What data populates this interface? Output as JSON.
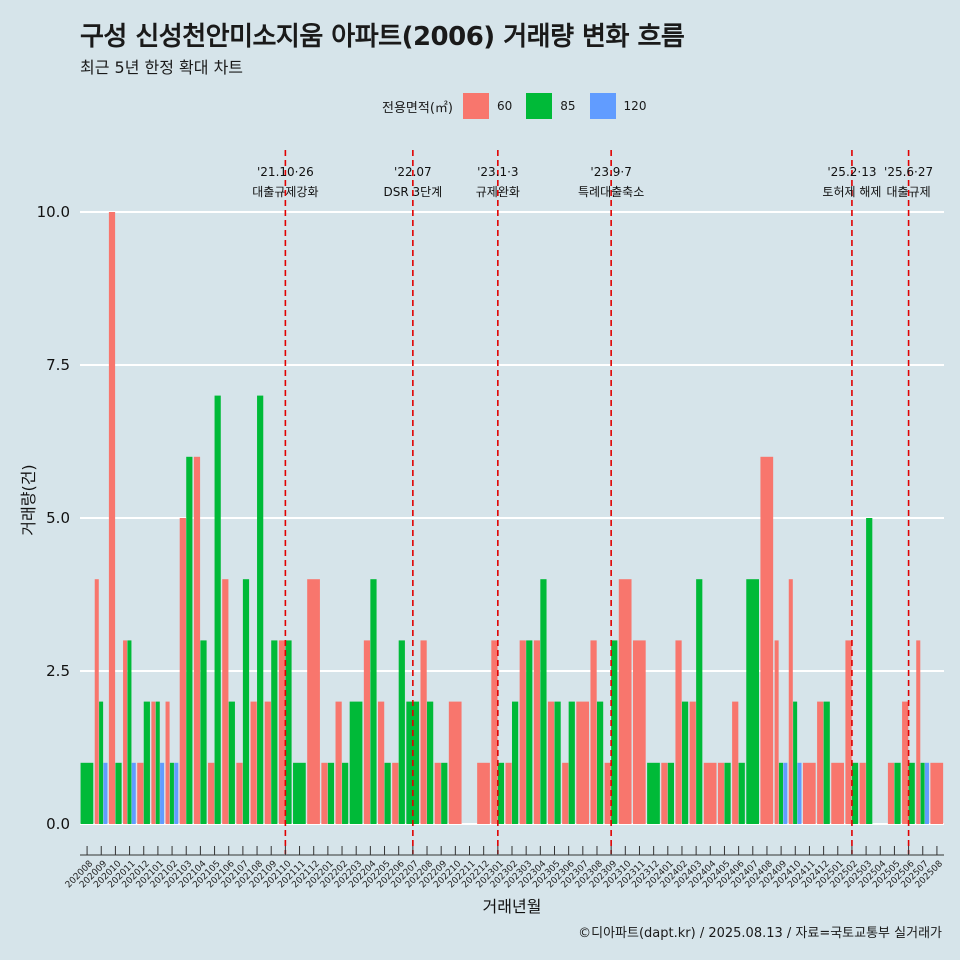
{
  "title": "구성 신성천안미소지움 아파트(2006) 거래량 변화 흐름",
  "subtitle": "최근 5년 한정 확대 차트",
  "caption": "©디아파트(dapt.kr) / 2025.08.13 / 자료=국토교통부 실거래가",
  "legend": {
    "title": "전용면적(㎡)",
    "items": [
      {
        "label": "60",
        "color": "#f8766d"
      },
      {
        "label": "85",
        "color": "#00ba38"
      },
      {
        "label": "120",
        "color": "#619cff"
      }
    ]
  },
  "chart_data": {
    "type": "bar",
    "xlabel": "거래년월",
    "ylabel": "거래량(건)",
    "ylim": [
      0,
      10
    ],
    "yticks": [
      "0.0",
      "2.5",
      "5.0",
      "7.5",
      "10.0"
    ],
    "categories": [
      "202008",
      "202009",
      "202010",
      "202011",
      "202012",
      "202101",
      "202102",
      "202103",
      "202104",
      "202105",
      "202106",
      "202107",
      "202108",
      "202109",
      "202110",
      "202111",
      "202112",
      "202201",
      "202202",
      "202203",
      "202204",
      "202205",
      "202206",
      "202207",
      "202208",
      "202209",
      "202210",
      "202211",
      "202212",
      "202301",
      "202302",
      "202303",
      "202304",
      "202305",
      "202306",
      "202307",
      "202308",
      "202309",
      "202310",
      "202311",
      "202312",
      "202401",
      "202402",
      "202403",
      "202404",
      "202405",
      "202406",
      "202407",
      "202408",
      "202409",
      "202410",
      "202411",
      "202412",
      "202501",
      "202502",
      "202503",
      "202504",
      "202505",
      "202506",
      "202507",
      "202508"
    ],
    "bars": [
      {
        "cat": "202008",
        "segments": [
          {
            "size": "85",
            "value": 1
          }
        ]
      },
      {
        "cat": "202009",
        "segments": [
          {
            "size": "60",
            "value": 4
          },
          {
            "size": "85",
            "value": 2
          },
          {
            "size": "120",
            "value": 1
          }
        ]
      },
      {
        "cat": "202010",
        "segments": [
          {
            "size": "60",
            "value": 10
          },
          {
            "size": "85",
            "value": 1
          }
        ]
      },
      {
        "cat": "202011",
        "segments": [
          {
            "size": "60",
            "value": 3
          },
          {
            "size": "85",
            "value": 3
          },
          {
            "size": "120",
            "value": 1
          }
        ]
      },
      {
        "cat": "202012",
        "segments": [
          {
            "size": "60",
            "value": 1
          },
          {
            "size": "85",
            "value": 2
          }
        ]
      },
      {
        "cat": "202101",
        "segments": [
          {
            "size": "60",
            "value": 2
          },
          {
            "size": "85",
            "value": 2
          },
          {
            "size": "120",
            "value": 1
          }
        ]
      },
      {
        "cat": "202102",
        "segments": [
          {
            "size": "60",
            "value": 2
          },
          {
            "size": "85",
            "value": 1
          },
          {
            "size": "120",
            "value": 1
          }
        ]
      },
      {
        "cat": "202103",
        "segments": [
          {
            "size": "60",
            "value": 5
          },
          {
            "size": "85",
            "value": 6
          }
        ]
      },
      {
        "cat": "202104",
        "segments": [
          {
            "size": "60",
            "value": 6
          },
          {
            "size": "85",
            "value": 3
          }
        ]
      },
      {
        "cat": "202105",
        "segments": [
          {
            "size": "60",
            "value": 1
          },
          {
            "size": "85",
            "value": 7
          }
        ]
      },
      {
        "cat": "202106",
        "segments": [
          {
            "size": "60",
            "value": 4
          },
          {
            "size": "85",
            "value": 2
          }
        ]
      },
      {
        "cat": "202107",
        "segments": [
          {
            "size": "60",
            "value": 1
          },
          {
            "size": "85",
            "value": 4
          }
        ]
      },
      {
        "cat": "202108",
        "segments": [
          {
            "size": "60",
            "value": 2
          },
          {
            "size": "85",
            "value": 7
          }
        ]
      },
      {
        "cat": "202109",
        "segments": [
          {
            "size": "60",
            "value": 2
          },
          {
            "size": "85",
            "value": 3
          }
        ]
      },
      {
        "cat": "202110",
        "segments": [
          {
            "size": "60",
            "value": 3
          },
          {
            "size": "85",
            "value": 3
          }
        ]
      },
      {
        "cat": "202111",
        "segments": [
          {
            "size": "85",
            "value": 1
          }
        ]
      },
      {
        "cat": "202112",
        "segments": [
          {
            "size": "60",
            "value": 4
          }
        ]
      },
      {
        "cat": "202201",
        "segments": [
          {
            "size": "60",
            "value": 1
          },
          {
            "size": "85",
            "value": 1
          }
        ]
      },
      {
        "cat": "202202",
        "segments": [
          {
            "size": "60",
            "value": 2
          },
          {
            "size": "85",
            "value": 1
          }
        ]
      },
      {
        "cat": "202203",
        "segments": [
          {
            "size": "85",
            "value": 2
          }
        ]
      },
      {
        "cat": "202204",
        "segments": [
          {
            "size": "60",
            "value": 3
          },
          {
            "size": "85",
            "value": 4
          }
        ]
      },
      {
        "cat": "202205",
        "segments": [
          {
            "size": "60",
            "value": 2
          },
          {
            "size": "85",
            "value": 1
          }
        ]
      },
      {
        "cat": "202206",
        "segments": [
          {
            "size": "60",
            "value": 1
          },
          {
            "size": "85",
            "value": 3
          }
        ]
      },
      {
        "cat": "202207",
        "segments": [
          {
            "size": "85",
            "value": 2
          }
        ]
      },
      {
        "cat": "202208",
        "segments": [
          {
            "size": "60",
            "value": 3
          },
          {
            "size": "85",
            "value": 2
          }
        ]
      },
      {
        "cat": "202209",
        "segments": [
          {
            "size": "60",
            "value": 1
          },
          {
            "size": "85",
            "value": 1
          }
        ]
      },
      {
        "cat": "202210",
        "segments": [
          {
            "size": "60",
            "value": 2
          }
        ]
      },
      {
        "cat": "202211",
        "segments": []
      },
      {
        "cat": "202212",
        "segments": [
          {
            "size": "60",
            "value": 1
          }
        ]
      },
      {
        "cat": "202301",
        "segments": [
          {
            "size": "60",
            "value": 3
          },
          {
            "size": "85",
            "value": 1
          }
        ]
      },
      {
        "cat": "202302",
        "segments": [
          {
            "size": "60",
            "value": 1
          },
          {
            "size": "85",
            "value": 2
          }
        ]
      },
      {
        "cat": "202303",
        "segments": [
          {
            "size": "60",
            "value": 3
          },
          {
            "size": "85",
            "value": 3
          }
        ]
      },
      {
        "cat": "202304",
        "segments": [
          {
            "size": "60",
            "value": 3
          },
          {
            "size": "85",
            "value": 4
          }
        ]
      },
      {
        "cat": "202305",
        "segments": [
          {
            "size": "60",
            "value": 2
          },
          {
            "size": "85",
            "value": 2
          }
        ]
      },
      {
        "cat": "202306",
        "segments": [
          {
            "size": "60",
            "value": 1
          },
          {
            "size": "85",
            "value": 2
          }
        ]
      },
      {
        "cat": "202307",
        "segments": [
          {
            "size": "60",
            "value": 2
          }
        ]
      },
      {
        "cat": "202308",
        "segments": [
          {
            "size": "60",
            "value": 3
          },
          {
            "size": "85",
            "value": 2
          }
        ]
      },
      {
        "cat": "202309",
        "segments": [
          {
            "size": "60",
            "value": 1
          },
          {
            "size": "85",
            "value": 3
          }
        ]
      },
      {
        "cat": "202310",
        "segments": [
          {
            "size": "60",
            "value": 4
          }
        ]
      },
      {
        "cat": "202311",
        "segments": [
          {
            "size": "60",
            "value": 3
          }
        ]
      },
      {
        "cat": "202312",
        "segments": [
          {
            "size": "85",
            "value": 1
          }
        ]
      },
      {
        "cat": "202401",
        "segments": [
          {
            "size": "60",
            "value": 1
          },
          {
            "size": "85",
            "value": 1
          }
        ]
      },
      {
        "cat": "202402",
        "segments": [
          {
            "size": "60",
            "value": 3
          },
          {
            "size": "85",
            "value": 2
          }
        ]
      },
      {
        "cat": "202403",
        "segments": [
          {
            "size": "60",
            "value": 2
          },
          {
            "size": "85",
            "value": 4
          }
        ]
      },
      {
        "cat": "202404",
        "segments": [
          {
            "size": "60",
            "value": 1
          }
        ]
      },
      {
        "cat": "202405",
        "segments": [
          {
            "size": "60",
            "value": 1
          },
          {
            "size": "85",
            "value": 1
          }
        ]
      },
      {
        "cat": "202406",
        "segments": [
          {
            "size": "60",
            "value": 2
          },
          {
            "size": "85",
            "value": 1
          }
        ]
      },
      {
        "cat": "202407",
        "segments": [
          {
            "size": "85",
            "value": 4
          }
        ]
      },
      {
        "cat": "202408",
        "segments": [
          {
            "size": "60",
            "value": 6
          }
        ]
      },
      {
        "cat": "202409",
        "segments": [
          {
            "size": "60",
            "value": 3
          },
          {
            "size": "85",
            "value": 1
          },
          {
            "size": "120",
            "value": 1
          }
        ]
      },
      {
        "cat": "202410",
        "segments": [
          {
            "size": "60",
            "value": 4
          },
          {
            "size": "85",
            "value": 2
          },
          {
            "size": "120",
            "value": 1
          }
        ]
      },
      {
        "cat": "202411",
        "segments": [
          {
            "size": "60",
            "value": 1
          }
        ]
      },
      {
        "cat": "202412",
        "segments": [
          {
            "size": "60",
            "value": 2
          },
          {
            "size": "85",
            "value": 2
          }
        ]
      },
      {
        "cat": "202501",
        "segments": [
          {
            "size": "60",
            "value": 1
          }
        ]
      },
      {
        "cat": "202502",
        "segments": [
          {
            "size": "60",
            "value": 3
          },
          {
            "size": "85",
            "value": 1
          }
        ]
      },
      {
        "cat": "202503",
        "segments": [
          {
            "size": "60",
            "value": 1
          },
          {
            "size": "85",
            "value": 5
          }
        ]
      },
      {
        "cat": "202504",
        "segments": []
      },
      {
        "cat": "202505",
        "segments": [
          {
            "size": "60",
            "value": 1
          },
          {
            "size": "85",
            "value": 1
          }
        ]
      },
      {
        "cat": "202506",
        "segments": [
          {
            "size": "60",
            "value": 2
          },
          {
            "size": "85",
            "value": 1
          }
        ]
      },
      {
        "cat": "202507",
        "segments": [
          {
            "size": "60",
            "value": 3
          },
          {
            "size": "85",
            "value": 1
          },
          {
            "size": "120",
            "value": 1
          }
        ]
      },
      {
        "cat": "202508",
        "segments": [
          {
            "size": "60",
            "value": 1
          }
        ]
      }
    ],
    "events": [
      {
        "date": "'21.10·26",
        "label": "대출규제강화",
        "at": "202110"
      },
      {
        "date": "'22.07",
        "label": "DSR 3단계",
        "at": "202207"
      },
      {
        "date": "'23.1·3",
        "label": "규제완화",
        "at": "202301"
      },
      {
        "date": "'23.9·7",
        "label": "특례대출축소",
        "at": "202309"
      },
      {
        "date": "'25.2·13",
        "label": "토허제 해제",
        "at": "202502"
      },
      {
        "date": "'25.6·27",
        "label": "대출규제",
        "at": "202506"
      }
    ],
    "grid": true,
    "legend_position": "top"
  }
}
